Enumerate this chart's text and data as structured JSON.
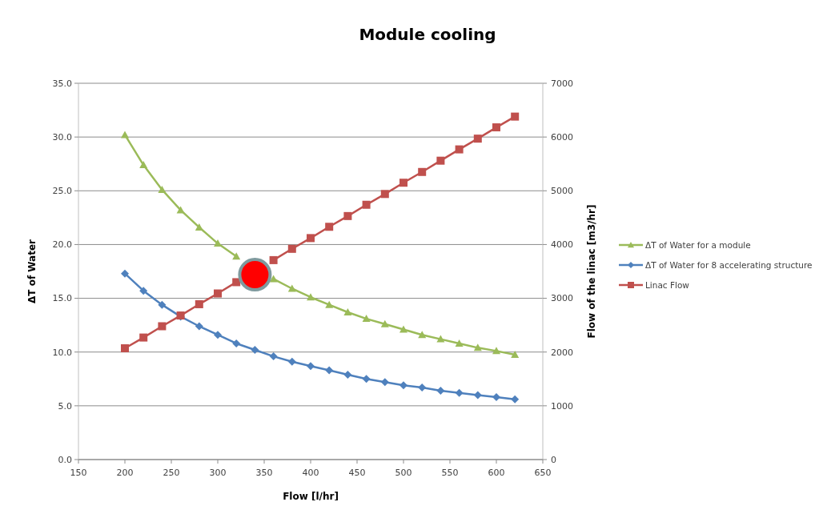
{
  "chart_data": {
    "type": "line",
    "title": "Module cooling",
    "xlabel": "Flow [l/hr]",
    "ylabel": "ΔT of Water",
    "y2label": "Flow of the linac [m3/hr]",
    "x": [
      200,
      220,
      240,
      260,
      280,
      300,
      320,
      340,
      360,
      380,
      400,
      420,
      440,
      460,
      480,
      500,
      520,
      540,
      560,
      580,
      600,
      620
    ],
    "xlim": [
      150,
      650
    ],
    "xticks": [
      150,
      200,
      250,
      300,
      350,
      400,
      450,
      500,
      550,
      600,
      650
    ],
    "ylim": [
      0,
      35
    ],
    "yticks": [
      {
        "value": 0,
        "label": "0.0"
      },
      {
        "value": 5,
        "label": "5.0"
      },
      {
        "value": 10,
        "label": "10.0"
      },
      {
        "value": 15,
        "label": "15.0"
      },
      {
        "value": 20,
        "label": "20.0"
      },
      {
        "value": 25,
        "label": "25.0"
      },
      {
        "value": 30,
        "label": "30.0"
      },
      {
        "value": 35,
        "label": "35.0"
      }
    ],
    "y2lim": [
      0,
      7000
    ],
    "y2ticks": [
      0,
      1000,
      2000,
      3000,
      4000,
      5000,
      6000,
      7000
    ],
    "grid": "y",
    "legend": "right",
    "line_style": "solid",
    "series": [
      {
        "name": "ΔT of Water for a module",
        "color": "#9bbb59",
        "marker": "triangle",
        "values": [
          30.2,
          27.4,
          25.1,
          23.2,
          21.6,
          20.1,
          18.9,
          null,
          16.8,
          15.9,
          15.1,
          14.4,
          13.7,
          13.1,
          12.6,
          12.1,
          11.6,
          11.2,
          10.8,
          10.4,
          10.1,
          9.75
        ]
      },
      {
        "name": "ΔT of Water for 8 accelerating structure",
        "color": "#4f81bd",
        "marker": "diamond",
        "values": [
          17.3,
          15.7,
          14.4,
          13.3,
          12.4,
          11.6,
          10.8,
          10.2,
          9.6,
          9.1,
          8.7,
          8.3,
          7.9,
          7.5,
          7.2,
          6.9,
          6.7,
          6.4,
          6.2,
          6.0,
          5.8,
          5.6
        ]
      },
      {
        "name": "Linac Flow",
        "color": "#c0504d",
        "marker": "square",
        "axis": "y2",
        "values": [
          2070,
          2270,
          2480,
          2680,
          2890,
          3090,
          3300,
          null,
          3710,
          3920,
          4120,
          4330,
          4530,
          4740,
          4940,
          5150,
          5350,
          5560,
          5770,
          5970,
          6180,
          6380
        ]
      },
      {
        "type": "scatter",
        "color": "#ff0000",
        "marker": "circle",
        "x": [
          340
        ],
        "values": [
          17.2
        ]
      }
    ]
  }
}
